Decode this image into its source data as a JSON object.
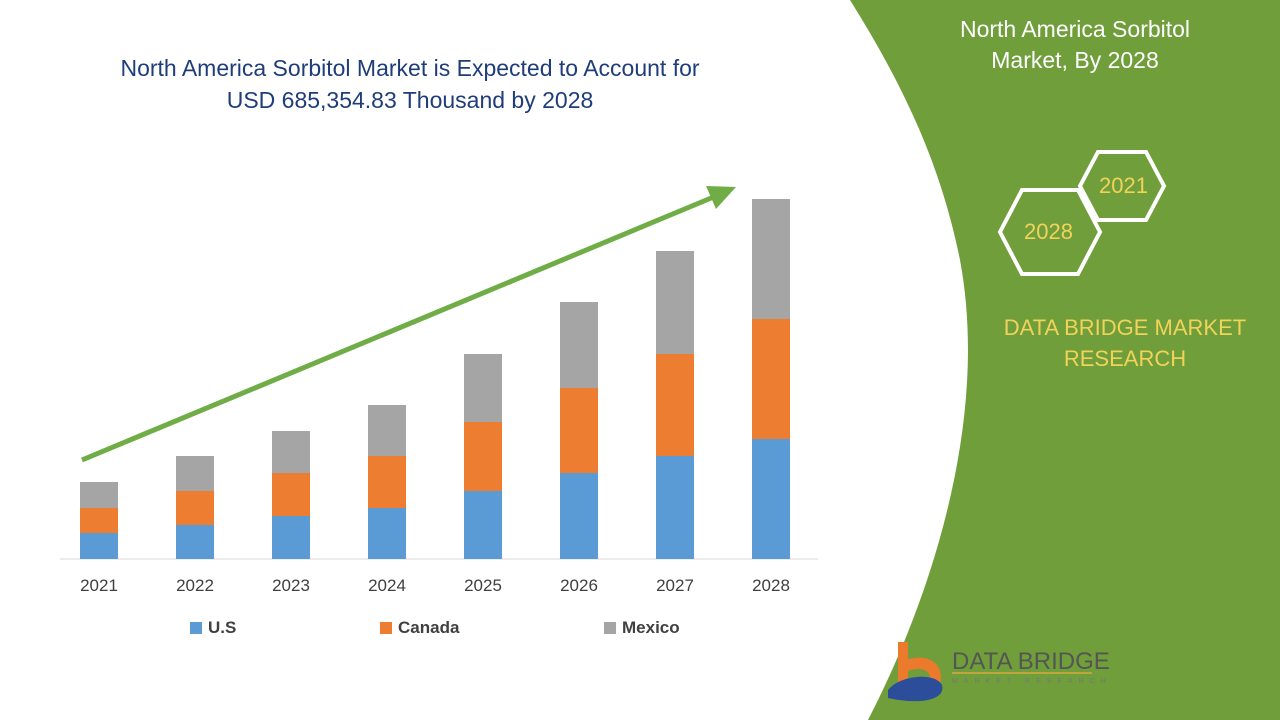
{
  "title": "North America Sorbitol Market is Expected to Account for USD 685,354.83 Thousand by 2028",
  "title_line1": "North America Sorbitol Market is Expected to Account for",
  "title_line2": "USD 685,354.83 Thousand by 2028",
  "side_panel": {
    "title_line1": "North America Sorbitol",
    "title_line2": "Market, By 2028",
    "hex_start": "2021",
    "hex_end": "2028",
    "brand_line1": "DATA BRIDGE MARKET",
    "brand_line2": "RESEARCH",
    "logo_text": "DATA BRIDGE",
    "logo_subtext": "MARKET RESEARCH",
    "color": "#6f9e3a"
  },
  "chart_data": {
    "type": "bar",
    "stacked": true,
    "categories": [
      "2021",
      "2022",
      "2023",
      "2024",
      "2025",
      "2026",
      "2027",
      "2028"
    ],
    "series": [
      {
        "name": "U.S",
        "color": "#5b9bd5",
        "values": [
          26,
          34,
          43,
          51,
          68,
          86,
          103,
          120
        ]
      },
      {
        "name": "Canada",
        "color": "#ed7d31",
        "values": [
          25,
          34,
          43,
          52,
          69,
          85,
          102,
          120
        ]
      },
      {
        "name": "Mexico",
        "color": "#a5a5a5",
        "values": [
          26,
          35,
          42,
          51,
          68,
          86,
          103,
          120
        ]
      }
    ],
    "y_axis_shown": false,
    "grid": false,
    "legend": "bottom",
    "trend_arrow_color": "#70ad47"
  }
}
